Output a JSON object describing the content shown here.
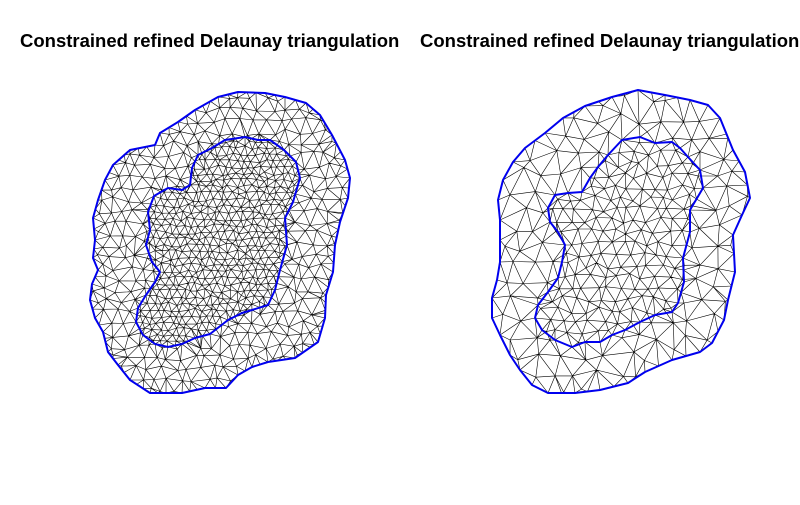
{
  "panels": [
    {
      "title": "Constrained refined Delaunay triangulation",
      "density": "fine"
    },
    {
      "title": "Constrained refined Delaunay triangulation",
      "density": "coarse"
    }
  ],
  "colors": {
    "background": "#ffffff",
    "mesh_edge": "#000000",
    "boundary": "#0000ee"
  }
}
